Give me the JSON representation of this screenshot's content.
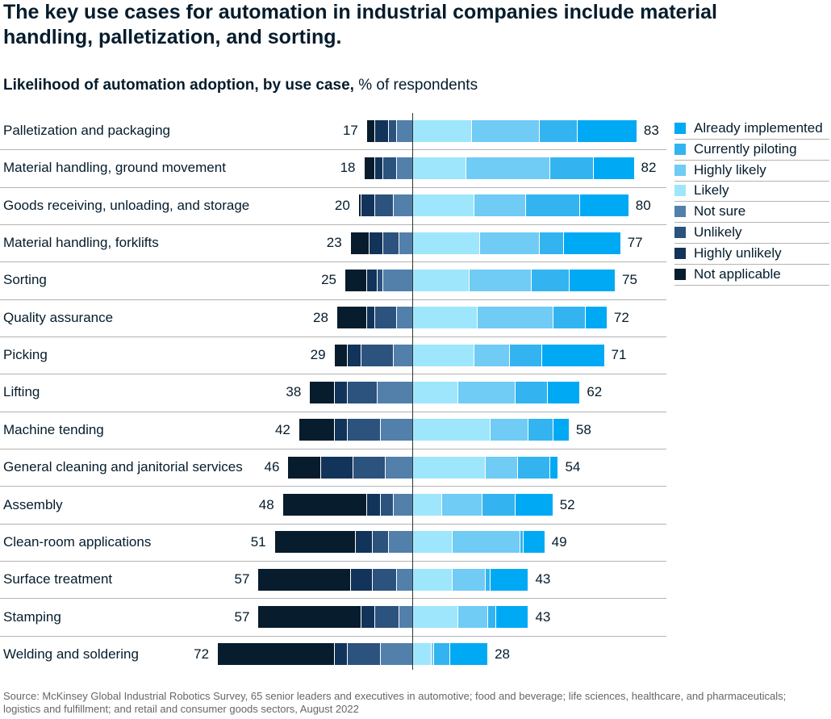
{
  "title": "The key use cases for automation in industrial companies include material handling, palletization, and sorting.",
  "subtitle_bold": "Likelihood of automation adoption, by use case,",
  "subtitle_rest": " % of respondents",
  "source": "Source: McKinsey Global Industrial Robotics Survey, 65 senior leaders and executives in automotive; food and beverage; life sciences, healthcare, and pharmaceuticals; logistics and fulfillment; and retail and consumer goods sectors, August 2022",
  "chart_data": {
    "type": "bar",
    "orientation": "horizontal diverging stacked",
    "title": "Likelihood of automation adoption, by use case, % of respondents",
    "legend_position": "right",
    "categories": [
      "Palletization and packaging",
      "Material handling, ground movement",
      "Goods receiving, unloading, and storage",
      "Material handling, forklifts",
      "Sorting",
      "Quality assurance",
      "Picking",
      "Lifting",
      "Machine tending",
      "General cleaning and janitorial services",
      "Assembly",
      "Clean-room applications",
      "Surface treatment",
      "Stamping",
      "Welding and soldering"
    ],
    "negative_totals": [
      17,
      18,
      20,
      23,
      25,
      28,
      29,
      38,
      42,
      46,
      48,
      51,
      57,
      57,
      72
    ],
    "positive_totals": [
      83,
      82,
      80,
      77,
      75,
      72,
      71,
      62,
      58,
      54,
      52,
      49,
      43,
      43,
      28
    ],
    "series": [
      {
        "name": "Already implemented",
        "side": "positive",
        "color": "#00a9f4",
        "values": [
          22,
          15,
          18,
          21,
          17,
          8,
          23,
          12,
          6,
          3,
          14,
          8,
          14,
          12,
          14
        ]
      },
      {
        "name": "Currently piloting",
        "side": "positive",
        "color": "#33b4f0",
        "values": [
          14,
          16,
          20,
          9,
          14,
          12,
          12,
          12,
          9,
          12,
          12,
          1,
          2,
          3,
          6
        ]
      },
      {
        "name": "Highly likely",
        "side": "positive",
        "color": "#70cbf5",
        "values": [
          25,
          31,
          19,
          22,
          23,
          28,
          13,
          21,
          14,
          12,
          15,
          25,
          12,
          11,
          1
        ]
      },
      {
        "name": "Likely",
        "side": "positive",
        "color": "#9ee6fc",
        "values": [
          22,
          20,
          23,
          25,
          21,
          24,
          23,
          17,
          29,
          27,
          11,
          15,
          15,
          17,
          7
        ]
      },
      {
        "name": "Not sure",
        "side": "negative",
        "color": "#5280ab",
        "values": [
          6,
          6,
          7,
          5,
          11,
          6,
          7,
          13,
          12,
          10,
          7,
          9,
          6,
          5,
          12
        ]
      },
      {
        "name": "Unlikely",
        "side": "negative",
        "color": "#2c527e",
        "values": [
          3,
          5,
          7,
          6,
          2,
          8,
          12,
          11,
          12,
          12,
          5,
          6,
          9,
          9,
          12
        ]
      },
      {
        "name": "Highly unlikely",
        "side": "negative",
        "color": "#12335a",
        "values": [
          5,
          3,
          5,
          5,
          4,
          3,
          5,
          5,
          5,
          12,
          5,
          6,
          8,
          5,
          5
        ]
      },
      {
        "name": "Not applicable",
        "side": "negative",
        "color": "#071c2c",
        "values": [
          3,
          4,
          1,
          7,
          8,
          11,
          5,
          9,
          13,
          12,
          31,
          30,
          34,
          38,
          43
        ]
      }
    ]
  }
}
